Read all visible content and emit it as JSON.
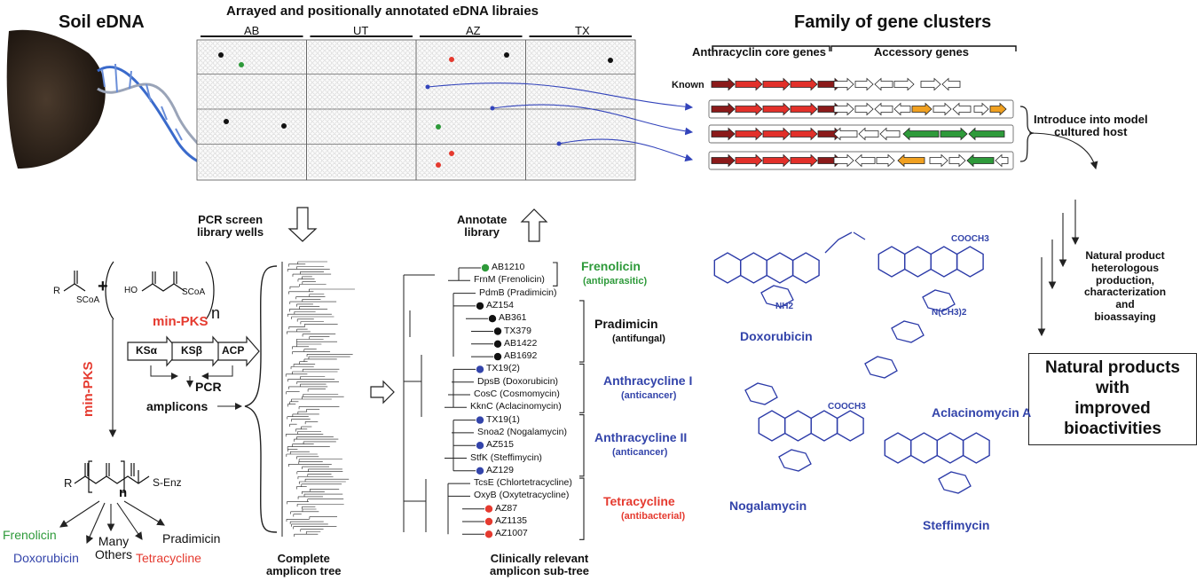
{
  "titles": {
    "soil": "Soil eDNA",
    "arrayed": "Arrayed and positionally annotated eDNA libraies",
    "family": "Family of gene clusters"
  },
  "library_columns": [
    "AB",
    "UT",
    "AZ",
    "TX"
  ],
  "gene_cluster": {
    "core_label": "Anthracyclin core genes",
    "accessory_label": "Accessory genes",
    "known_label": "Known",
    "introduce_label": "Introduce into model\ncultured host"
  },
  "flow": {
    "pcr_screen": "PCR screen\nlibrary wells",
    "annotate": "Annotate\nlibrary",
    "natural_product_steps": "Natural product\nheterologous\nproduction,\ncharacterization\nand\nbioassaying",
    "final_box": "Natural products\nwith\nimproved\nbioactivities"
  },
  "chemistry": {
    "min_pks_vertical": "min-PKS",
    "min_pks_top": "min-PKS",
    "domains": [
      "KSα",
      "KSβ",
      "ACP"
    ],
    "pcr": "PCR",
    "amplicons": "amplicons",
    "scoa_1": "SCoA",
    "scoa_2": "SCoA",
    "r_group": "R",
    "plus": "+",
    "n_sub": "n",
    "ho": "HO",
    "s_enz": "S-Enz",
    "products": {
      "frenolicin": "Frenolicin",
      "doxorubicin": "Doxorubicin",
      "many_others": "Many\nOthers",
      "tetracycline": "Tetracycline",
      "pradimicin": "Pradimicin"
    }
  },
  "tree_labels": {
    "complete": "Complete\namplicon tree",
    "subtree": "Clinically relevant\namplicon sub-tree"
  },
  "subtree": {
    "leaves": [
      {
        "label": "AB1210",
        "dot": "green"
      },
      {
        "label": "FrnM (Frenolicin)",
        "dot": ""
      },
      {
        "label": "PdmB (Pradimicin)",
        "dot": ""
      },
      {
        "label": "AZ154",
        "dot": "black"
      },
      {
        "label": "AB361",
        "dot": "black"
      },
      {
        "label": "TX379",
        "dot": "black"
      },
      {
        "label": "AB1422",
        "dot": "black"
      },
      {
        "label": "AB1692",
        "dot": "black"
      },
      {
        "label": "TX19(2)",
        "dot": "blue"
      },
      {
        "label": "DpsB (Doxorubicin)",
        "dot": ""
      },
      {
        "label": "CosC (Cosmomycin)",
        "dot": ""
      },
      {
        "label": "KknC (Aclacinomycin)",
        "dot": ""
      },
      {
        "label": "TX19(1)",
        "dot": "blue"
      },
      {
        "label": "Snoa2 (Nogalamycin)",
        "dot": ""
      },
      {
        "label": "AZ515",
        "dot": "blue"
      },
      {
        "label": "StfK (Steffimycin)",
        "dot": ""
      },
      {
        "label": "AZ129",
        "dot": "blue"
      },
      {
        "label": "TcsE (Chlortetracycline)",
        "dot": ""
      },
      {
        "label": "OxyB (Oxytetracycline)",
        "dot": ""
      },
      {
        "label": "AZ87",
        "dot": "red"
      },
      {
        "label": "AZ1135",
        "dot": "red"
      },
      {
        "label": "AZ1007",
        "dot": "red"
      }
    ],
    "groups": [
      {
        "name": "Frenolicin",
        "sub": "(antiparasitic)",
        "color": "#2e9a3a"
      },
      {
        "name": "Pradimicin",
        "sub": "(antifungal)",
        "color": "#111111"
      },
      {
        "name": "Anthracycline I",
        "sub": "(anticancer)",
        "color": "#3344aa"
      },
      {
        "name": "Anthracycline II",
        "sub": "(anticancer)",
        "color": "#3344aa"
      },
      {
        "name": "Tetracycline",
        "sub": "(antibacterial)",
        "color": "#e53a2f"
      }
    ]
  },
  "compounds": {
    "doxorubicin": "Doxorubicin",
    "aclacinomycin": "Aclacinomycin A",
    "nogalamycin": "Nogalamycin",
    "steffimycin": "Steffimycin",
    "cooch3_1": "COOCH3",
    "cooch3_2": "COOCH3",
    "nh2": "NH2",
    "nch3": "N(CH3)2"
  },
  "colors": {
    "core_dark": "#8b1a1a",
    "core_red": "#e2302a",
    "orange": "#f0a020",
    "green": "#2e9a3a",
    "blue_arrow": "#3344bb"
  }
}
